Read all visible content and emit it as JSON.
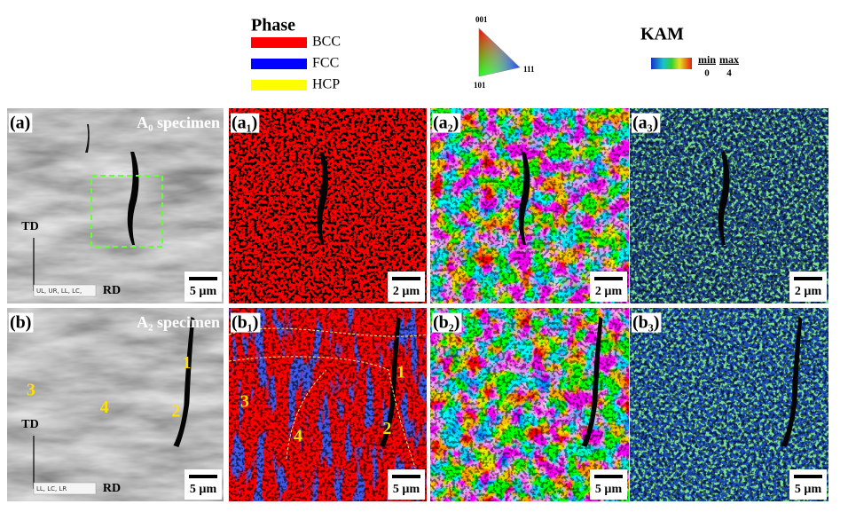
{
  "legend": {
    "phase": {
      "title": "Phase",
      "items": [
        "BCC",
        "FCC",
        "HCP"
      ]
    },
    "ipf": {
      "labels": [
        "001",
        "101",
        "111"
      ]
    },
    "kam": {
      "title": "KAM",
      "min_label": "min",
      "min_value": 0,
      "max_label": "max",
      "max_value": 4
    }
  },
  "panels": [
    {
      "label": "(a)",
      "caption": "A₀ specimen",
      "scale_bar": "5 µm",
      "axes": [
        "TD",
        "RD"
      ],
      "stage_note": "UL, UR, LL, LC,"
    },
    {
      "label": "(a₁)",
      "scale_bar": "2 µm"
    },
    {
      "label": "(a₂)",
      "scale_bar": "2 µm"
    },
    {
      "label": "(a₃)",
      "scale_bar": "2 µm"
    },
    {
      "label": "(b)",
      "caption": "A₂ specimen",
      "scale_bar": "5 µm",
      "axes": [
        "TD",
        "RD"
      ],
      "stage_note": "LL, LC, LR",
      "markers": [
        "1",
        "2",
        "3",
        "4"
      ]
    },
    {
      "label": "(b₁)",
      "scale_bar": "5 µm",
      "markers": [
        "1",
        "2",
        "3",
        "4"
      ]
    },
    {
      "label": "(b₂)",
      "scale_bar": "5 µm"
    },
    {
      "label": "(b₃)",
      "scale_bar": "5 µm"
    }
  ]
}
